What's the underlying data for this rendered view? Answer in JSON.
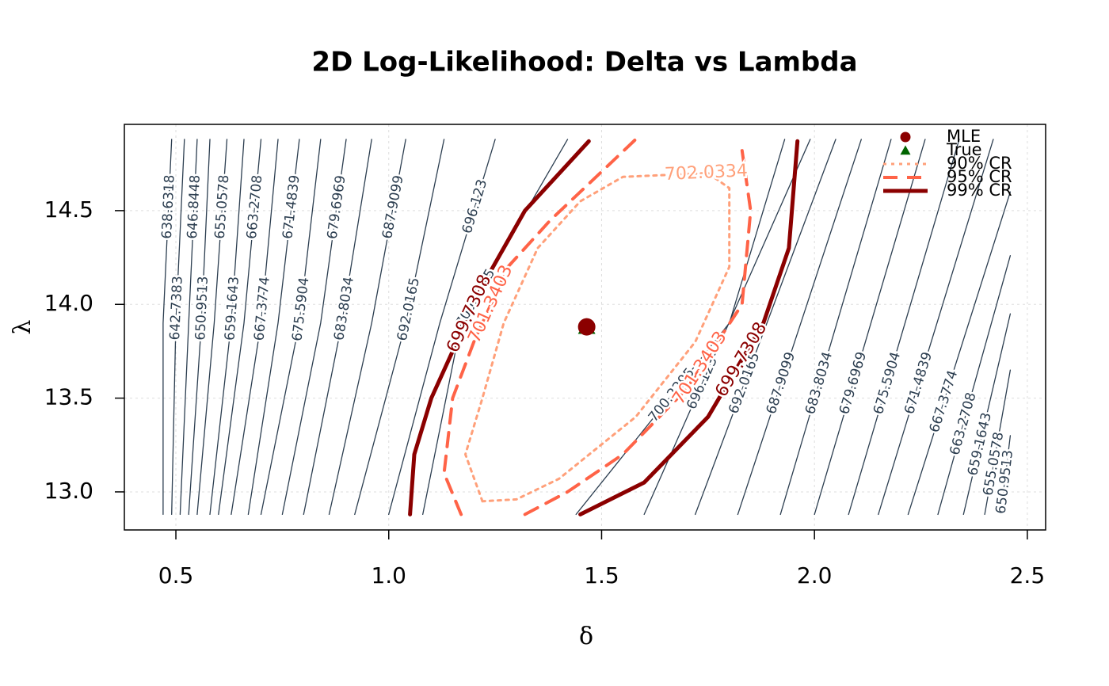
{
  "chart_data": {
    "type": "contour",
    "title": "2D Log-Likelihood: Delta vs Lambda",
    "xlabel": "δ",
    "ylabel": "λ",
    "xlim": [
      0.379,
      2.543
    ],
    "ylim": [
      12.797,
      14.96
    ],
    "xticks": [
      0.5,
      {
        "value": 1,
        "label": "1.0"
      },
      1.5,
      {
        "value": 2,
        "label": "2.0"
      },
      2.5
    ],
    "yticks": [
      {
        "value": 13,
        "label": "13.0"
      },
      13.5,
      {
        "value": 14,
        "label": "14.0"
      },
      14.5
    ],
    "grid": true,
    "contours": [
      {
        "level": 638.6318,
        "color": "#2c3e50",
        "line": "thin",
        "x": [
          0.47,
          0.47,
          0.49
        ],
        "y": [
          12.88,
          13.9,
          14.88
        ]
      },
      {
        "level": 642.7383,
        "color": "#2c3e50",
        "line": "thin",
        "x": [
          0.49,
          0.5,
          0.52
        ],
        "y": [
          12.88,
          13.9,
          14.88
        ]
      },
      {
        "level": 646.8448,
        "color": "#2c3e50",
        "line": "thin",
        "x": [
          0.51,
          0.53,
          0.55
        ],
        "y": [
          12.88,
          13.9,
          14.88
        ]
      },
      {
        "level": 650.9513,
        "color": "#2c3e50",
        "line": "thin",
        "x": [
          0.53,
          0.56,
          0.58,
          null,
          2.44,
          2.46
        ],
        "y": [
          12.88,
          13.9,
          14.88,
          null,
          12.92,
          13.3
        ]
      },
      {
        "level": 655.0578,
        "color": "#2c3e50",
        "line": "thin",
        "x": [
          0.55,
          0.59,
          0.62,
          null,
          2.4,
          2.46
        ],
        "y": [
          12.88,
          13.9,
          14.88,
          null,
          12.88,
          13.65
        ]
      },
      {
        "level": 659.1643,
        "color": "#2c3e50",
        "line": "thin",
        "x": [
          0.58,
          0.63,
          0.66,
          null,
          2.35,
          2.46
        ],
        "y": [
          12.88,
          13.9,
          14.88,
          null,
          12.88,
          13.95
        ]
      },
      {
        "level": 663.2708,
        "color": "#2c3e50",
        "line": "thin",
        "x": [
          0.6,
          0.66,
          0.7,
          null,
          2.29,
          2.46
        ],
        "y": [
          12.88,
          13.9,
          14.88,
          null,
          12.88,
          14.26
        ]
      },
      {
        "level": 667.3774,
        "color": "#2c3e50",
        "line": "thin",
        "x": [
          0.63,
          0.7,
          0.74,
          null,
          2.22,
          2.46
        ],
        "y": [
          12.88,
          13.9,
          14.88,
          null,
          12.88,
          14.6
        ]
      },
      {
        "level": 671.4839,
        "color": "#2c3e50",
        "line": "thin",
        "x": [
          0.67,
          0.74,
          0.79,
          null,
          2.15,
          2.42
        ],
        "y": [
          12.88,
          13.9,
          14.88,
          null,
          12.88,
          14.88
        ]
      },
      {
        "level": 675.5904,
        "color": "#2c3e50",
        "line": "thin",
        "x": [
          0.7,
          0.79,
          0.84,
          null,
          2.08,
          2.34
        ],
        "y": [
          12.88,
          13.9,
          14.88,
          null,
          12.88,
          14.88
        ]
      },
      {
        "level": 679.6969,
        "color": "#2c3e50",
        "line": "thin",
        "x": [
          0.75,
          0.84,
          0.9,
          null,
          2.0,
          2.26
        ],
        "y": [
          12.88,
          13.9,
          14.88,
          null,
          12.88,
          14.88
        ]
      },
      {
        "level": 683.8034,
        "color": "#2c3e50",
        "line": "thin",
        "x": [
          0.8,
          0.89,
          0.96,
          null,
          1.92,
          2.18
        ],
        "y": [
          12.88,
          13.9,
          14.88,
          null,
          12.88,
          14.88
        ]
      },
      {
        "level": 687.9099,
        "color": "#2c3e50",
        "line": "thin",
        "x": [
          0.86,
          0.96,
          1.04,
          null,
          1.82,
          2.11
        ],
        "y": [
          12.88,
          13.9,
          14.88,
          null,
          12.88,
          14.88
        ]
      },
      {
        "level": 692.0165,
        "color": "#2c3e50",
        "line": "thin",
        "x": [
          0.92,
          1.04,
          1.13,
          null,
          1.72,
          2.05
        ],
        "y": [
          12.88,
          13.9,
          14.88,
          null,
          12.88,
          14.88
        ]
      },
      {
        "level": 696.123,
        "color": "#2c3e50",
        "line": "thin",
        "x": [
          1.0,
          1.12,
          1.25,
          null,
          1.6,
          1.99
        ],
        "y": [
          12.88,
          13.9,
          14.88,
          null,
          12.88,
          14.88
        ]
      },
      {
        "level": 700.2295,
        "color": "#2c3e50",
        "line": "thin",
        "x": [
          1.08,
          1.17,
          1.42,
          null,
          1.44,
          1.8,
          1.93
        ],
        "y": [
          12.88,
          13.9,
          14.88,
          null,
          12.88,
          13.9,
          14.88
        ]
      },
      {
        "level": 699.7308,
        "color": "#8b0000",
        "line": "solid",
        "x": [
          1.05,
          1.06,
          1.1,
          1.15,
          1.22,
          1.32,
          1.47,
          null,
          1.45,
          1.6,
          1.75,
          1.88,
          1.94,
          1.96
        ],
        "y": [
          12.88,
          13.2,
          13.5,
          13.75,
          14.1,
          14.5,
          14.87,
          null,
          12.88,
          13.05,
          13.4,
          13.9,
          14.3,
          14.87
        ]
      },
      {
        "level": 701.3403,
        "color": "#ff6347",
        "line": "dashed",
        "x": [
          1.17,
          1.13,
          1.15,
          1.2,
          1.28,
          1.38,
          1.45,
          1.58,
          null,
          1.32,
          1.42,
          1.55,
          1.7,
          1.83,
          1.85,
          1.83
        ],
        "y": [
          12.88,
          13.1,
          13.5,
          13.8,
          14.2,
          14.45,
          14.6,
          14.88,
          null,
          12.88,
          13.0,
          13.2,
          13.55,
          14.0,
          14.5,
          14.82
        ]
      },
      {
        "level": 702.0334,
        "color": "#ffa07a",
        "line": "dotted",
        "x": [
          1.22,
          1.18,
          1.22,
          1.27,
          1.35,
          1.45,
          1.55,
          1.75,
          1.8,
          1.8,
          1.72,
          1.58,
          1.4,
          1.3,
          1.22
        ],
        "y": [
          12.95,
          13.2,
          13.5,
          13.9,
          14.3,
          14.55,
          14.68,
          14.7,
          14.62,
          14.2,
          13.8,
          13.4,
          13.07,
          12.96,
          12.95
        ]
      }
    ],
    "points": [
      {
        "x": 1.465,
        "y": 13.88,
        "color": "#006400",
        "marker": "triangle"
      },
      {
        "x": 1.465,
        "y": 13.88,
        "color": "#8b0000",
        "marker": "circle"
      }
    ],
    "legend": {
      "position": "topright",
      "items": [
        {
          "name": "MLE",
          "color": "#8b0000",
          "marker": "circle"
        },
        {
          "name": "True",
          "color": "#006400",
          "marker": "triangle"
        },
        {
          "name": "90% CR",
          "color": "#ffa07a",
          "line": "dotted"
        },
        {
          "name": "95% CR",
          "color": "#ff6347",
          "line": "dashed"
        },
        {
          "name": "99% CR",
          "color": "#8b0000",
          "line": "solid"
        }
      ]
    }
  }
}
